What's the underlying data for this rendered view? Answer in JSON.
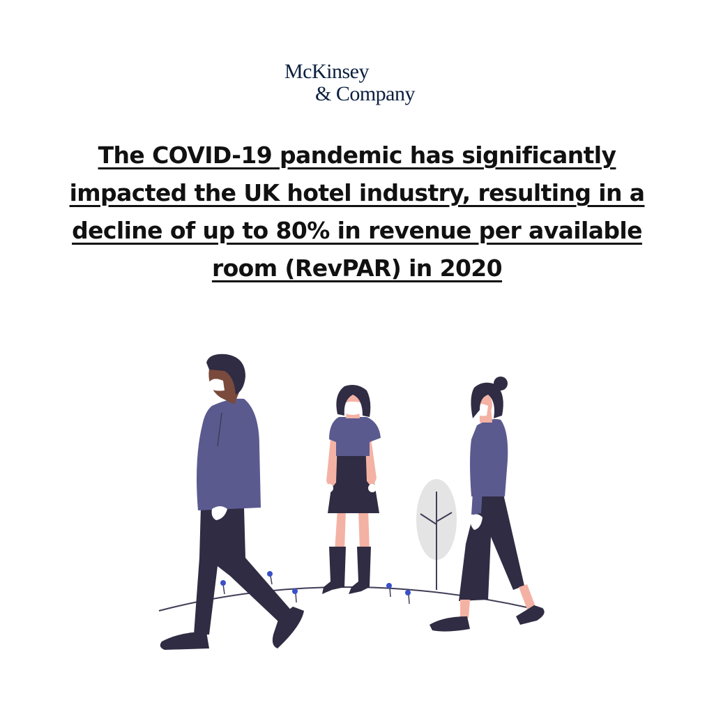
{
  "logo": {
    "line1": "McKinsey",
    "line2": "& Company"
  },
  "headline": "The COVID-19 pandemic has significantly impacted the UK hotel industry, resulting in a decline of up to 80% in revenue per available room (RevPAR) in 2020",
  "illustration": {
    "colors": {
      "shirt": "#5b5a8f",
      "pants": "#2f2c43",
      "hair": "#2f2c43",
      "skin_dark": "#7a4a3c",
      "skin_light": "#f4b2a4",
      "mask": "#ffffff",
      "tree": "#e4e4e4",
      "ground_line": "#3f3d56",
      "flower": "#3a50c9"
    }
  }
}
